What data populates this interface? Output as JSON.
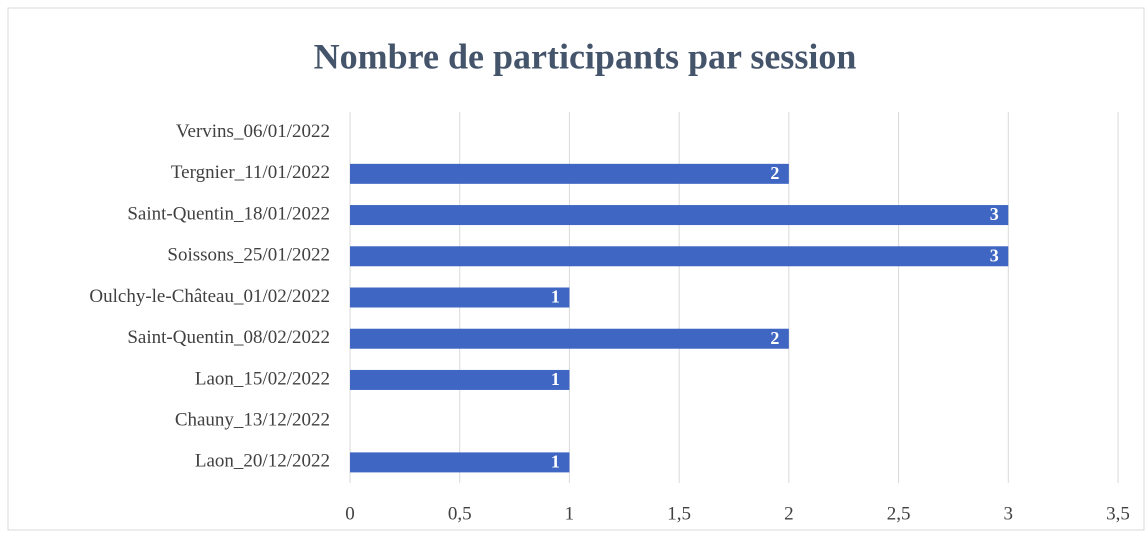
{
  "chart_data": {
    "type": "bar",
    "orientation": "horizontal",
    "title": "Nombre de participants par session",
    "categories": [
      "Vervins_06/01/2022",
      "Tergnier_11/01/2022",
      "Saint-Quentin_18/01/2022",
      "Soissons_25/01/2022",
      "Oulchy-le-Château_01/02/2022",
      "Saint-Quentin_08/02/2022",
      "Laon_15/02/2022",
      "Chauny_13/12/2022",
      "Laon_20/12/2022"
    ],
    "values": [
      null,
      2,
      3,
      3,
      1,
      2,
      1,
      null,
      1
    ],
    "color": "#3f66c2",
    "xlim": [
      0,
      3.5
    ],
    "xticks": [
      0,
      {
        "value": 0.5,
        "label": "0,5"
      },
      1,
      {
        "value": 1.5,
        "label": "1,5"
      },
      2,
      {
        "value": 2.5,
        "label": "2,5"
      },
      3,
      {
        "value": 3.5,
        "label": "3,5"
      }
    ],
    "grid": true
  }
}
